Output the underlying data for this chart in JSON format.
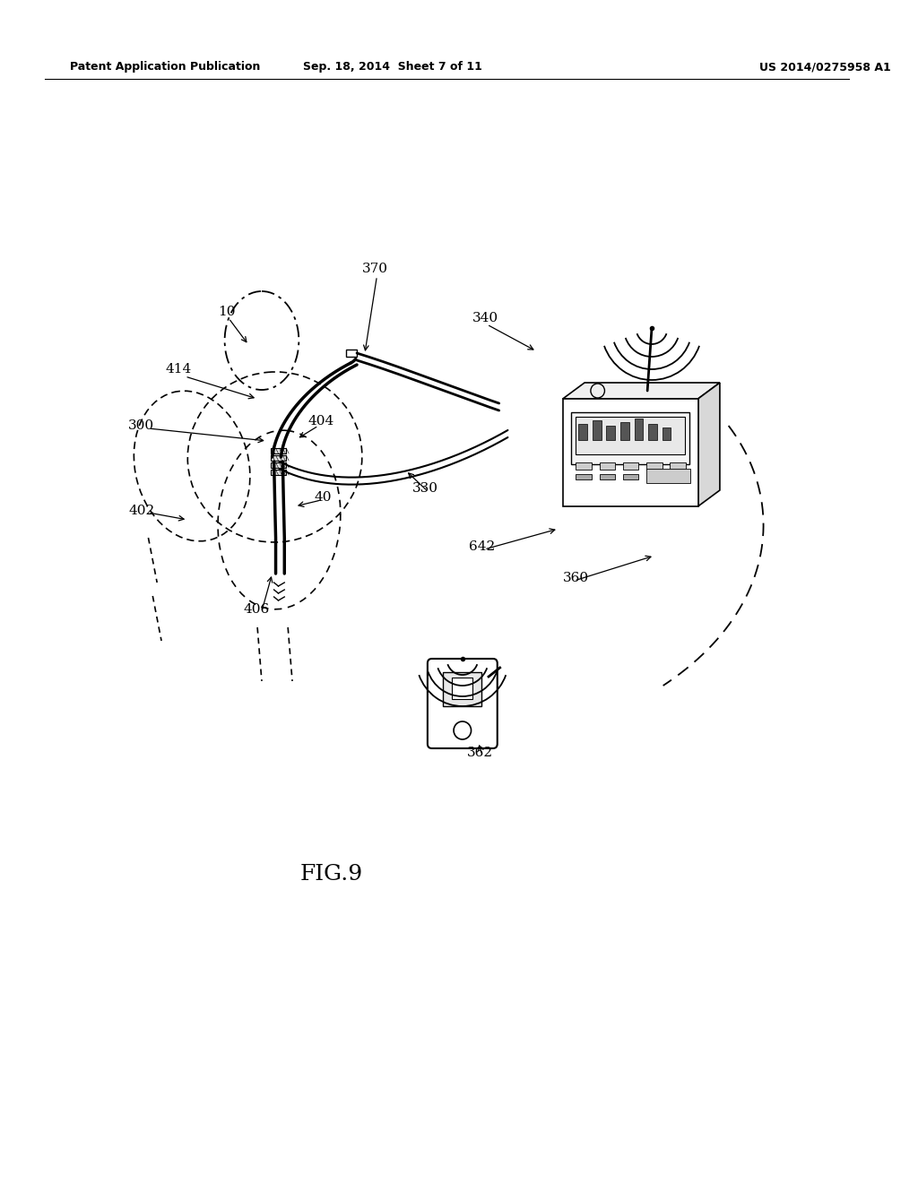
{
  "bg_color": "#ffffff",
  "header_left": "Patent Application Publication",
  "header_center": "Sep. 18, 2014  Sheet 7 of 11",
  "header_right": "US 2014/0275958 A1",
  "fig_label": "FIG.9"
}
